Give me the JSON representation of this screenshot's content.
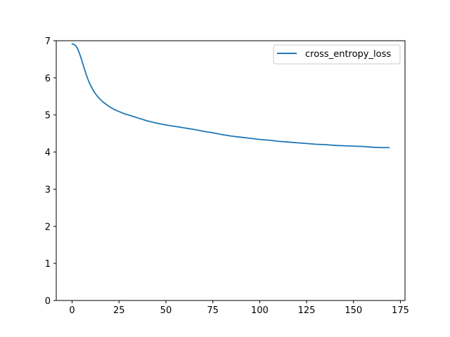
{
  "chart_data": {
    "type": "line",
    "title": "",
    "xlabel": "",
    "ylabel": "",
    "xlim": [
      -8.45,
      177.45
    ],
    "ylim": [
      0,
      7
    ],
    "xticks": [
      0,
      25,
      50,
      75,
      100,
      125,
      150,
      175
    ],
    "yticks": [
      0,
      1,
      2,
      3,
      4,
      5,
      6,
      7
    ],
    "grid": false,
    "legend_position": "top-right",
    "series": [
      {
        "name": "cross_entropy_loss",
        "color": "#1f77b4",
        "x": [
          0,
          1,
          2,
          3,
          4,
          5,
          6,
          7,
          8,
          9,
          10,
          12,
          14,
          16,
          18,
          20,
          22,
          25,
          28,
          30,
          35,
          40,
          45,
          50,
          55,
          60,
          65,
          70,
          75,
          80,
          85,
          90,
          95,
          100,
          105,
          110,
          115,
          120,
          125,
          130,
          135,
          140,
          145,
          150,
          155,
          160,
          165,
          169
        ],
        "y": [
          6.91,
          6.9,
          6.86,
          6.78,
          6.65,
          6.5,
          6.33,
          6.17,
          6.02,
          5.89,
          5.78,
          5.6,
          5.47,
          5.37,
          5.29,
          5.22,
          5.16,
          5.09,
          5.03,
          5.0,
          4.92,
          4.84,
          4.78,
          4.73,
          4.69,
          4.65,
          4.61,
          4.56,
          4.52,
          4.47,
          4.43,
          4.4,
          4.37,
          4.34,
          4.32,
          4.29,
          4.27,
          4.25,
          4.23,
          4.21,
          4.2,
          4.18,
          4.17,
          4.16,
          4.15,
          4.13,
          4.12,
          4.12
        ]
      }
    ]
  }
}
